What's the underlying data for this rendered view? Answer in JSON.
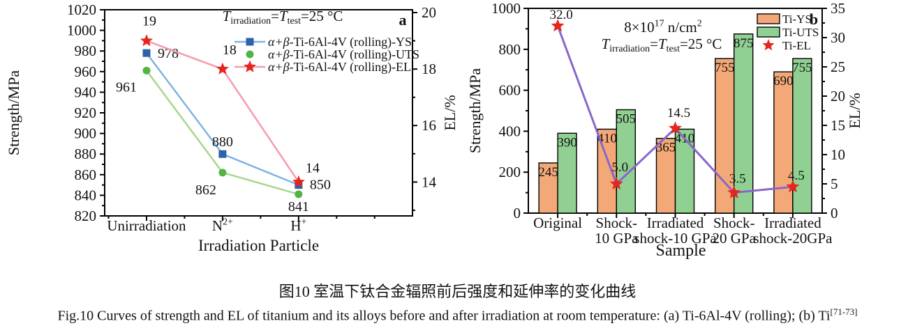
{
  "figure": {
    "caption_zh": "图10 室温下钛合金辐照前后强度和延伸率的变化曲线",
    "caption_en": "Fig.10  Curves of strength and EL of titanium and its alloys before and after irradiation at room temperature: (a) Ti-6Al-4V (rolling); (b) Ti^{[71-73]}"
  },
  "chart_data": [
    {
      "panel": "a",
      "type": "line",
      "annotation": "*T*_{irradiation}=*T*_{test}=25 °C",
      "xlabel": "Irradiation Particle",
      "ylabel_left": "Strength/MPa",
      "ylabel_right": "EL/%",
      "ylim_left": [
        820,
        1020
      ],
      "yticks_left": [
        820,
        840,
        860,
        880,
        900,
        920,
        940,
        960,
        980,
        1000,
        1020
      ],
      "ylim_right": [
        13,
        20
      ],
      "yticks_right": [
        14,
        16,
        18,
        20
      ],
      "categories": [
        "Unirradiation",
        "N^{2+}",
        "H^{+}"
      ],
      "legend_position": "upper-right-inside",
      "grid": false,
      "series": [
        {
          "name": "*α+β*-Ti-6Al-4V (rolling)-YS",
          "axis": "left",
          "marker": "square",
          "marker_color": "#2e61a8",
          "line_color": "#7fb3e3",
          "values": [
            978,
            880,
            850
          ],
          "labels": [
            "978",
            "880",
            "850"
          ]
        },
        {
          "name": "*α+β*-Ti-6Al-4V (rolling)-UTS",
          "axis": "left",
          "marker": "circle",
          "marker_color": "#52b445",
          "line_color": "#a9d78e",
          "values": [
            961,
            862,
            841
          ],
          "labels": [
            "961",
            "862",
            "841"
          ]
        },
        {
          "name": "*α+β*-Ti-6Al-4V (rolling)-EL",
          "axis": "right",
          "marker": "star",
          "marker_color": "#e52620",
          "line_color": "#f59cab",
          "values": [
            19,
            18,
            14
          ],
          "labels": [
            "19",
            "18",
            "14"
          ]
        }
      ]
    },
    {
      "panel": "b",
      "type": "bar",
      "annotation_line1": "8×10^{17} n/cm^{2}",
      "annotation_line2": "*T*_{irradiation}=*T*_{test}=25 °C",
      "xlabel": "Sample",
      "ylabel_left": "Strength/MPa",
      "ylabel_right": "EL/%",
      "ylim_left": [
        0,
        1000
      ],
      "yticks_left": [
        0,
        200,
        400,
        600,
        800,
        1000
      ],
      "ylim_right": [
        0,
        35
      ],
      "yticks_right": [
        0,
        5,
        10,
        15,
        20,
        25,
        30,
        35
      ],
      "categories": [
        "Original",
        "Shock-\n10 GPa",
        "Irradiated\nshock-10 GPa",
        "Shock-\n20 GPa",
        "Irradiated\nshock-20GPa"
      ],
      "legend_position": "upper-right-inside",
      "grid": false,
      "bar_series": [
        {
          "name": "Ti-YS",
          "color": "#f3a977",
          "values": [
            245,
            410,
            365,
            755,
            690
          ],
          "labels": [
            "245",
            "410",
            "365",
            "755",
            "690"
          ]
        },
        {
          "name": "Ti-UTS",
          "color": "#90d193",
          "values": [
            390,
            505,
            410,
            875,
            755
          ],
          "labels": [
            "390",
            "505",
            "410",
            "875",
            "755"
          ]
        }
      ],
      "line_series": {
        "name": "Ti-EL",
        "marker": "star",
        "marker_color": "#e52620",
        "line_color": "#8a66c9",
        "values": [
          32.0,
          5.0,
          14.5,
          3.5,
          4.5
        ],
        "labels": [
          "32.0",
          "5.0",
          "14.5",
          "3.5",
          "4.5"
        ]
      }
    }
  ]
}
